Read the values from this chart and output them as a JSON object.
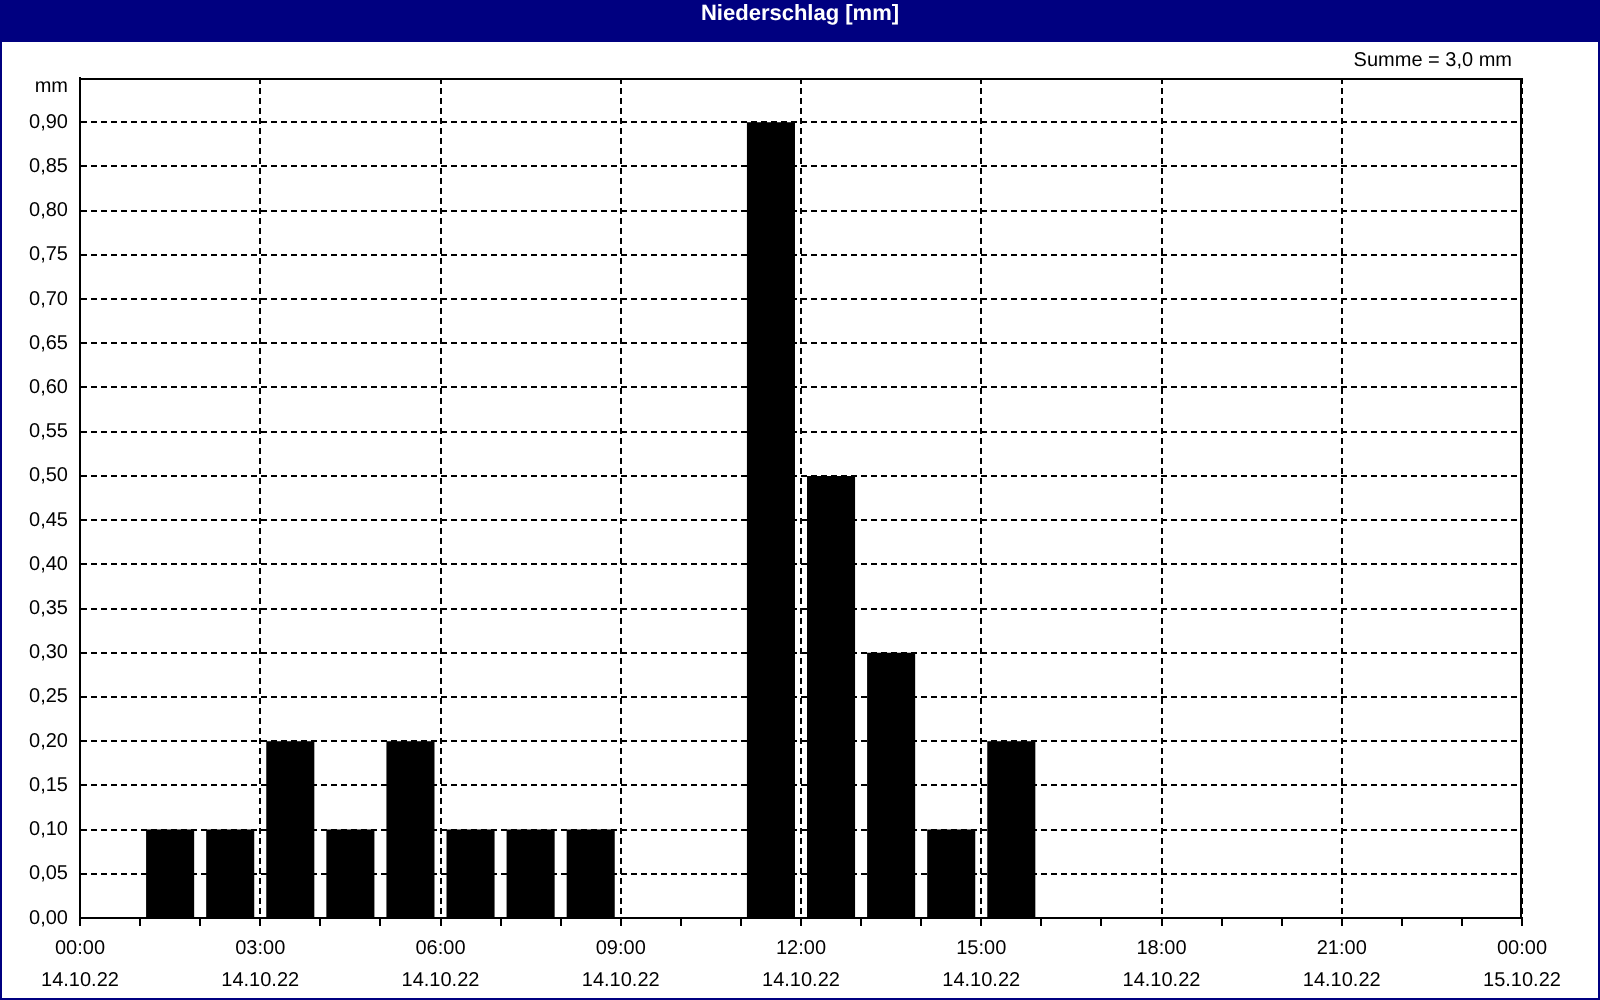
{
  "chart_data": {
    "type": "bar",
    "title": "Niederschlag [mm]",
    "ylabel": "mm",
    "annotations": [
      "Summe = 3,0 mm"
    ],
    "x": [
      "--10-14T01:30",
      "--10-14T02:30",
      "--10-14T03:30",
      "--10-14T04:30",
      "--10-14T05:30",
      "--10-14T06:30",
      "--10-14T07:30",
      "--10-14T08:30",
      "--10-14T11:30",
      "--10-14T12:30",
      "--10-14T13:30",
      "--10-14T14:30",
      "--10-14T15:30"
    ],
    "values": [
      0.1,
      0.1,
      0.2,
      0.1,
      0.2,
      0.1,
      0.1,
      0.1,
      0.9,
      0.5,
      0.3,
      0.1,
      0.2
    ],
    "color": "#000000",
    "xlim": [
      "--10-14T00:00",
      "--10-15T00:00"
    ],
    "xticks": [
      {
        "value": "--10-14T00:00",
        "label": "00:00\n14.10.22"
      },
      {
        "value": "--10-14T01:00",
        "label": null
      },
      {
        "value": "--10-14T02:00",
        "label": null
      },
      {
        "value": "--10-14T03:00",
        "label": "03:00\n14.10.22"
      },
      {
        "value": "--10-14T04:00",
        "label": null
      },
      {
        "value": "--10-14T05:00",
        "label": null
      },
      {
        "value": "--10-14T06:00",
        "label": "06:00\n14.10.22"
      },
      {
        "value": "--10-14T07:00",
        "label": null
      },
      {
        "value": "--10-14T08:00",
        "label": null
      },
      {
        "value": "--10-14T09:00",
        "label": "09:00\n14.10.22"
      },
      {
        "value": "--10-14T10:00",
        "label": null
      },
      {
        "value": "--10-14T11:00",
        "label": null
      },
      {
        "value": "--10-14T12:00",
        "label": "12:00\n14.10.22"
      },
      {
        "value": "--10-14T13:00",
        "label": null
      },
      {
        "value": "--10-14T14:00",
        "label": null
      },
      {
        "value": "--10-14T15:00",
        "label": "15:00\n14.10.22"
      },
      {
        "value": "--10-14T16:00",
        "label": null
      },
      {
        "value": "--10-14T17:00",
        "label": null
      },
      {
        "value": "--10-14T18:00",
        "label": "18:00\n14.10.22"
      },
      {
        "value": "--10-14T19:00",
        "label": null
      },
      {
        "value": "--10-14T20:00",
        "label": null
      },
      {
        "value": "--10-14T21:00",
        "label": "21:00\n14.10.22"
      },
      {
        "value": "--10-14T22:00",
        "label": null
      },
      {
        "value": "--10-14T23:00",
        "label": null
      },
      {
        "value": "--10-15T00:00",
        "label": "00:00\n15.10.22"
      }
    ],
    "ylim": [
      0,
      0.95
    ],
    "yticks": [
      {
        "value": 0,
        "label": "0,00"
      },
      {
        "value": 0.05,
        "label": "0,05"
      },
      {
        "value": 0.1,
        "label": "0,10"
      },
      {
        "value": 0.15,
        "label": "0,15"
      },
      {
        "value": 0.2,
        "label": "0,20"
      },
      {
        "value": 0.25,
        "label": "0,25"
      },
      {
        "value": 0.3,
        "label": "0,30"
      },
      {
        "value": 0.35,
        "label": "0,35"
      },
      {
        "value": 0.4,
        "label": "0,40"
      },
      {
        "value": 0.45,
        "label": "0,45"
      },
      {
        "value": 0.5,
        "label": "0,50"
      },
      {
        "value": 0.55,
        "label": "0,55"
      },
      {
        "value": 0.6,
        "label": "0,60"
      },
      {
        "value": 0.65,
        "label": "0,65"
      },
      {
        "value": 0.7,
        "label": "0,70"
      },
      {
        "value": 0.75,
        "label": "0,75"
      },
      {
        "value": 0.8,
        "label": "0,80"
      },
      {
        "value": 0.85,
        "label": "0,85"
      },
      {
        "value": 0.9,
        "label": "0,90"
      }
    ],
    "grid": true
  }
}
